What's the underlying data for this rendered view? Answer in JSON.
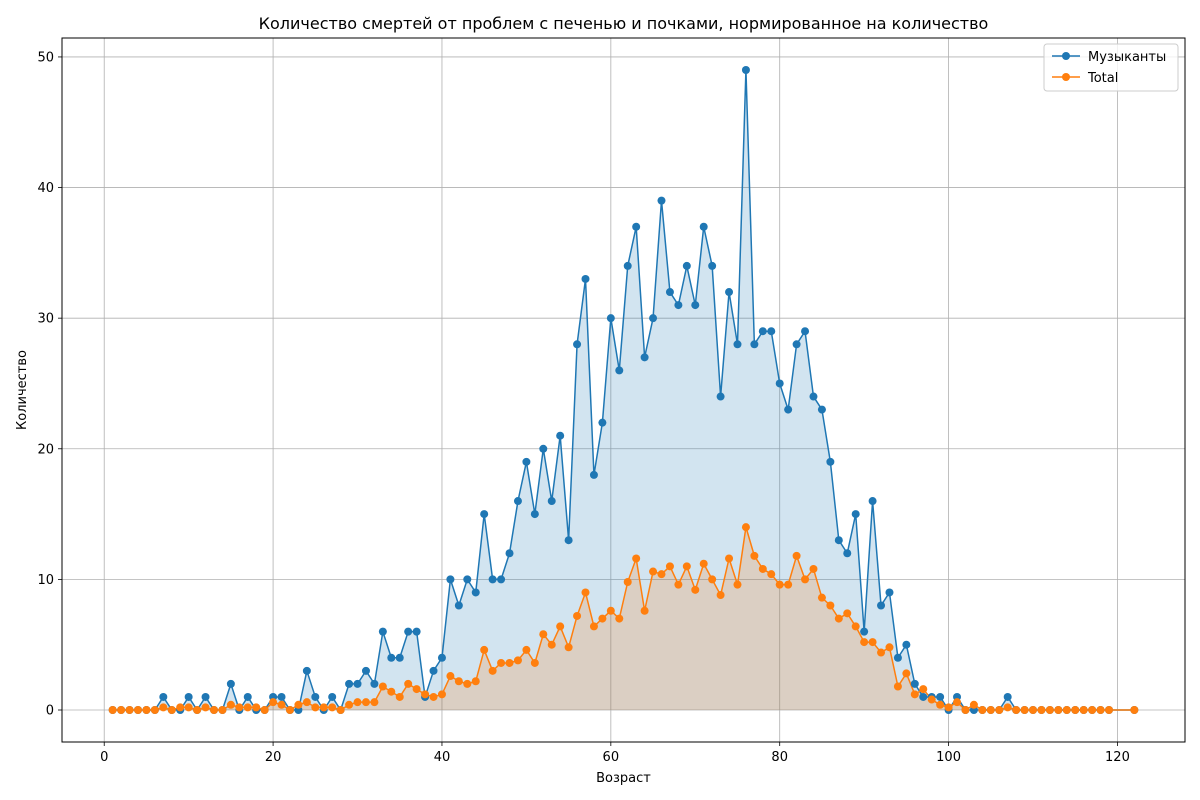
{
  "chart_data": {
    "type": "line",
    "title": "Количество смертей от проблем с печенью и почками, нормированное на количество",
    "xlabel": "Возраст",
    "ylabel": "Количество",
    "xlim": [
      -5,
      128
    ],
    "ylim": [
      -2.45,
      51.45
    ],
    "xticks": [
      0,
      20,
      40,
      60,
      80,
      100,
      120
    ],
    "yticks": [
      0,
      10,
      20,
      30,
      40,
      50
    ],
    "grid": true,
    "legend_position": "top-right",
    "series": [
      {
        "name": "Музыканты",
        "color": "#1f77b4",
        "fill": "#1f77b4",
        "x": [
          1,
          2,
          3,
          4,
          5,
          6,
          7,
          8,
          9,
          10,
          11,
          12,
          13,
          14,
          15,
          16,
          17,
          18,
          19,
          20,
          21,
          22,
          23,
          24,
          25,
          26,
          27,
          28,
          29,
          30,
          31,
          32,
          33,
          34,
          35,
          36,
          37,
          38,
          39,
          40,
          41,
          42,
          43,
          44,
          45,
          46,
          47,
          48,
          49,
          50,
          51,
          52,
          53,
          54,
          55,
          56,
          57,
          58,
          59,
          60,
          61,
          62,
          63,
          64,
          65,
          66,
          67,
          68,
          69,
          70,
          71,
          72,
          73,
          74,
          75,
          76,
          77,
          78,
          79,
          80,
          81,
          82,
          83,
          84,
          85,
          86,
          87,
          88,
          89,
          90,
          91,
          92,
          93,
          94,
          95,
          96,
          97,
          98,
          99,
          100,
          101,
          102,
          103,
          104,
          105,
          106,
          107,
          108,
          109,
          110,
          111,
          112,
          113,
          114,
          115,
          116,
          117,
          118,
          119,
          122
        ],
        "values": [
          0,
          0,
          0,
          0,
          0,
          0,
          1,
          0,
          0,
          1,
          0,
          1,
          0,
          0,
          2,
          0,
          1,
          0,
          0,
          1,
          1,
          0,
          0,
          3,
          1,
          0,
          1,
          0,
          2,
          2,
          3,
          2,
          6,
          4,
          4,
          6,
          6,
          1,
          3,
          4,
          10,
          8,
          10,
          9,
          15,
          10,
          10,
          12,
          16,
          19,
          15,
          20,
          16,
          21,
          13,
          28,
          33,
          18,
          22,
          30,
          26,
          34,
          37,
          27,
          30,
          39,
          32,
          31,
          34,
          31,
          37,
          34,
          24,
          32,
          28,
          49,
          28,
          29,
          29,
          25,
          23,
          28,
          29,
          24,
          23,
          19,
          13,
          12,
          15,
          6,
          16,
          8,
          9,
          4,
          5,
          2,
          1,
          1,
          1,
          0,
          1,
          0,
          0,
          0,
          0,
          0,
          1,
          0,
          0,
          0,
          0,
          0,
          0,
          0,
          0,
          0,
          0,
          0,
          0,
          0
        ]
      },
      {
        "name": "Total",
        "color": "#ff7f0e",
        "fill": "#ff7f0e",
        "x": [
          1,
          2,
          3,
          4,
          5,
          6,
          7,
          8,
          9,
          10,
          11,
          12,
          13,
          14,
          15,
          16,
          17,
          18,
          19,
          20,
          21,
          22,
          23,
          24,
          25,
          26,
          27,
          28,
          29,
          30,
          31,
          32,
          33,
          34,
          35,
          36,
          37,
          38,
          39,
          40,
          41,
          42,
          43,
          44,
          45,
          46,
          47,
          48,
          49,
          50,
          51,
          52,
          53,
          54,
          55,
          56,
          57,
          58,
          59,
          60,
          61,
          62,
          63,
          64,
          65,
          66,
          67,
          68,
          69,
          70,
          71,
          72,
          73,
          74,
          75,
          76,
          77,
          78,
          79,
          80,
          81,
          82,
          83,
          84,
          85,
          86,
          87,
          88,
          89,
          90,
          91,
          92,
          93,
          94,
          95,
          96,
          97,
          98,
          99,
          100,
          101,
          102,
          103,
          104,
          105,
          106,
          107,
          108,
          109,
          110,
          111,
          112,
          113,
          114,
          115,
          116,
          117,
          118,
          119,
          122
        ],
        "values": [
          0,
          0,
          0,
          0,
          0,
          0,
          0.2,
          0,
          0.2,
          0.2,
          0,
          0.2,
          0,
          0,
          0.4,
          0.2,
          0.2,
          0.2,
          0,
          0.6,
          0.4,
          0,
          0.4,
          0.6,
          0.2,
          0.2,
          0.2,
          0,
          0.4,
          0.6,
          0.6,
          0.6,
          1.8,
          1.4,
          1,
          2,
          1.6,
          1.2,
          1,
          1.2,
          2.6,
          2.2,
          2,
          2.2,
          4.6,
          3,
          3.6,
          3.6,
          3.8,
          4.6,
          3.6,
          5.8,
          5,
          6.4,
          4.8,
          7.2,
          9,
          6.4,
          7,
          7.6,
          7,
          9.8,
          11.6,
          7.6,
          10.6,
          10.4,
          11,
          9.6,
          11,
          9.2,
          11.2,
          10,
          8.8,
          11.6,
          9.6,
          14,
          11.8,
          10.8,
          10.4,
          9.6,
          9.6,
          11.8,
          10,
          10.8,
          8.6,
          8,
          7,
          7.4,
          6.4,
          5.2,
          5.2,
          4.4,
          4.8,
          1.8,
          2.8,
          1.2,
          1.6,
          0.8,
          0.4,
          0.2,
          0.6,
          0,
          0.4,
          0,
          0,
          0,
          0.2,
          0,
          0,
          0,
          0,
          0,
          0,
          0,
          0,
          0,
          0,
          0,
          0,
          0
        ]
      }
    ]
  }
}
